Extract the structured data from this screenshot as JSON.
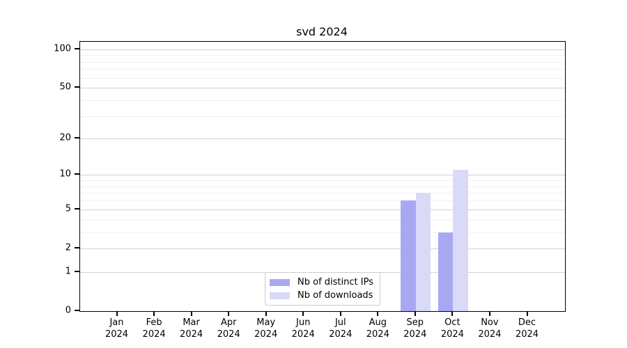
{
  "title": "svd 2024",
  "chart_data": {
    "type": "bar",
    "title": "svd 2024",
    "categories": [
      "Jan",
      "Feb",
      "Mar",
      "Apr",
      "May",
      "Jun",
      "Jul",
      "Aug",
      "Sep",
      "Oct",
      "Nov",
      "Dec"
    ],
    "category_year": "2024",
    "series": [
      {
        "name": "Nb of distinct IPs",
        "color": "#a8a8f2",
        "values": [
          0,
          0,
          0,
          0,
          0,
          0,
          0,
          0,
          6,
          3,
          0,
          0
        ]
      },
      {
        "name": "Nb of downloads",
        "color": "#d9d9f8",
        "values": [
          0,
          0,
          0,
          0,
          0,
          0,
          0,
          0,
          7,
          11,
          0,
          0
        ]
      }
    ],
    "y_axis": {
      "scale": "log1p",
      "ticks": [
        0,
        1,
        2,
        5,
        10,
        20,
        50,
        100
      ],
      "minor_ticks": [
        3,
        4,
        6,
        7,
        8,
        9,
        30,
        40,
        60,
        70,
        80,
        90
      ],
      "ylim": [
        0,
        114
      ]
    },
    "x_axis": {
      "label_lines": 2
    },
    "grid": true,
    "legend": {
      "position": "bottom-center-inside"
    },
    "colors": {
      "spine": "#000000",
      "grid_major": "#d2d2d2",
      "grid_minor": "#f0f0f0",
      "background": "#ffffff"
    }
  }
}
